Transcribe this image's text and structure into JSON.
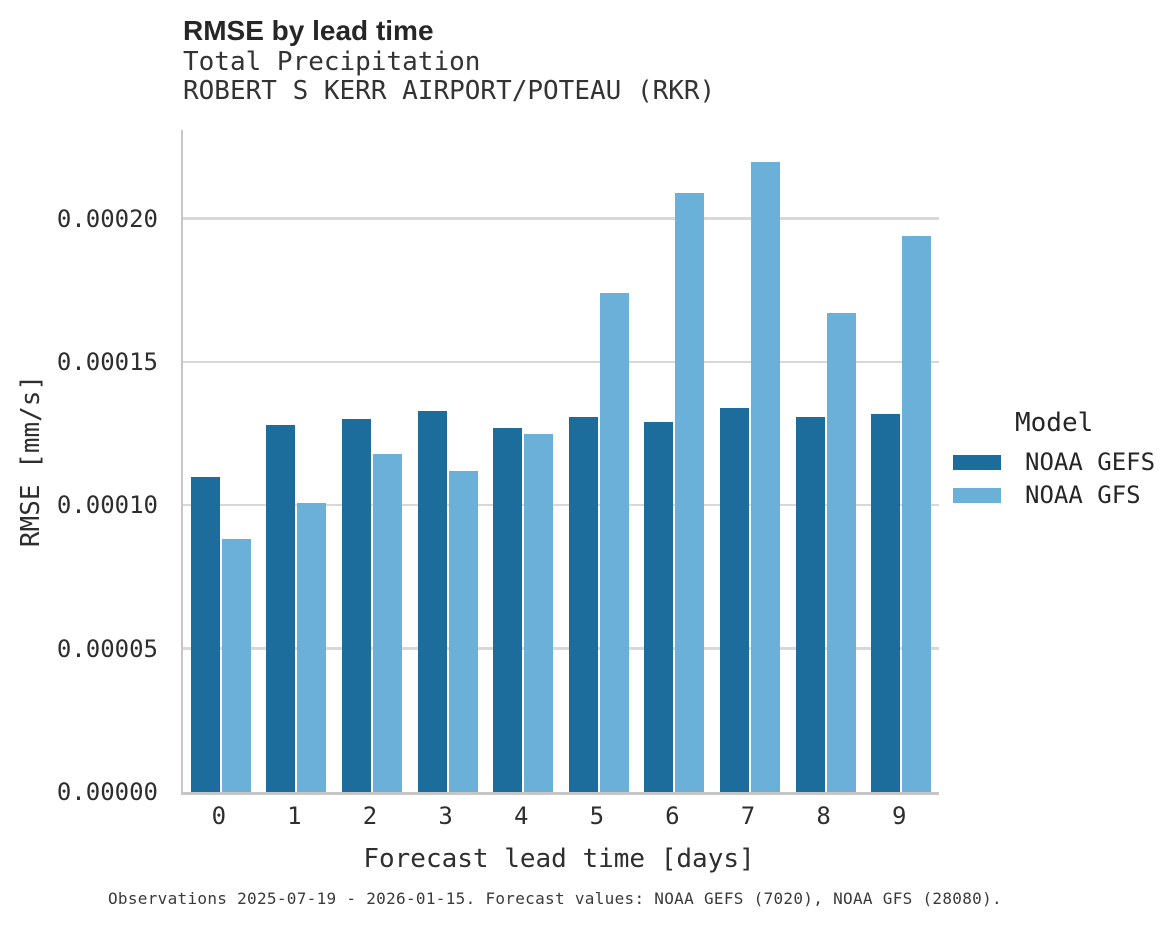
{
  "chart_data": {
    "type": "bar",
    "title": "RMSE by lead time",
    "subtitle": "Total Precipitation",
    "subtitle2": "ROBERT S KERR AIRPORT/POTEAU (RKR)",
    "xlabel": "Forecast lead time [days]",
    "ylabel": "RMSE [mm/s]",
    "legend_title": "Model",
    "legend_position": "center right",
    "grid": "horizontal",
    "ylim": [
      0,
      0.000231
    ],
    "categories": [
      "0",
      "1",
      "2",
      "3",
      "4",
      "5",
      "6",
      "7",
      "8",
      "9"
    ],
    "series": [
      {
        "name": "NOAA GEFS",
        "color": "#1c6d9c",
        "values": [
          0.00011,
          0.000128,
          0.00013,
          0.000133,
          0.000127,
          0.000131,
          0.000129,
          0.000134,
          0.000131,
          0.000132
        ]
      },
      {
        "name": "NOAA GFS",
        "color": "#6ab0d8",
        "values": [
          8.83e-05,
          0.000101,
          0.000118,
          0.000112,
          0.000125,
          0.000174,
          0.000209,
          0.00022,
          0.000167,
          0.000194
        ]
      }
    ],
    "yticks": [
      {
        "value": 0.0,
        "label": "0.00000"
      },
      {
        "value": 5e-05,
        "label": "0.00005"
      },
      {
        "value": 0.0001,
        "label": "0.00010"
      },
      {
        "value": 0.00015,
        "label": "0.00015"
      },
      {
        "value": 0.0002,
        "label": "0.00020"
      }
    ],
    "footnote": "Observations 2025-07-19 - 2026-01-15. Forecast values: NOAA GEFS (7020), NOAA GFS (28080)."
  }
}
